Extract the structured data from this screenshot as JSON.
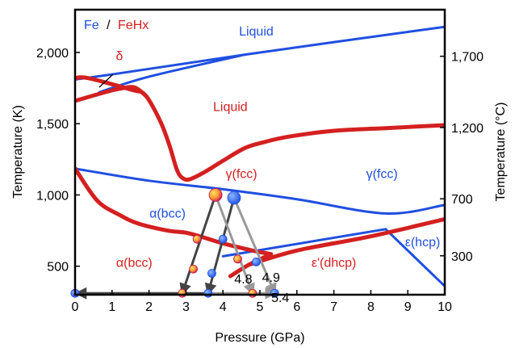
{
  "chart_data": {
    "type": "line",
    "title": "",
    "xlabel": "Pressure (GPa)",
    "ylabel": "Temperature (K)",
    "y2label": "Temperature (°C)",
    "xlim": [
      0,
      10
    ],
    "ylim": [
      300,
      2300
    ],
    "x_ticks": [
      0,
      1,
      2,
      3,
      4,
      5,
      6,
      7,
      8,
      9,
      10
    ],
    "y_ticks": [
      500,
      1000,
      1500,
      2000
    ],
    "y_tick_labels": [
      "500",
      "1,000",
      "1,500",
      "2,000"
    ],
    "y2_ticks": [
      300,
      700,
      1200,
      1700
    ],
    "y2_tick_labels": [
      "300",
      "700",
      "1,200",
      "1,700"
    ],
    "grid": false,
    "legend": {
      "position": "top-left",
      "items": [
        {
          "label": "Fe",
          "color": "#1f4fe0"
        },
        {
          "label": "/",
          "color": "#000000"
        },
        {
          "label": "FeHx",
          "color": "#d42020"
        }
      ]
    },
    "colors": {
      "fe": "#1f4fe0",
      "fehx": "#d42020",
      "path_dark": "#444444",
      "path_gray": "#999999",
      "axis": "#000000"
    },
    "series": [
      {
        "group": "Fe",
        "color": "#1f4fe0",
        "points": [
          [
            0.65,
            1720
          ],
          [
            2.0,
            1830
          ],
          [
            4.6,
            1985
          ]
        ]
      },
      {
        "group": "Fe",
        "color": "#1f4fe0",
        "points": [
          [
            0,
            1810
          ],
          [
            1.1,
            1850
          ],
          [
            4.6,
            1985
          ],
          [
            10,
            2180
          ]
        ]
      },
      {
        "group": "Fe",
        "color": "#1f4fe0",
        "points": [
          [
            0,
            1185
          ],
          [
            2.0,
            1100
          ],
          [
            4.0,
            1040
          ],
          [
            6.0,
            970
          ],
          [
            8.4,
            870
          ],
          [
            10,
            930
          ]
        ]
      },
      {
        "group": "Fe",
        "color": "#1f4fe0",
        "points": [
          [
            4.0,
            570
          ],
          [
            8.4,
            760
          ]
        ]
      },
      {
        "group": "Fe",
        "color": "#1f4fe0",
        "points": [
          [
            8.4,
            760
          ],
          [
            10,
            360
          ]
        ]
      },
      {
        "group": "FeHx",
        "color": "#d42020",
        "points": [
          [
            0,
            1820
          ],
          [
            0.35,
            1820
          ],
          [
            1.5,
            1740
          ],
          [
            1.9,
            1700
          ],
          [
            2.3,
            1520
          ],
          [
            2.55,
            1350
          ],
          [
            2.75,
            1180
          ],
          [
            2.9,
            1120
          ],
          [
            3.1,
            1110
          ],
          [
            3.5,
            1160
          ],
          [
            4.0,
            1240
          ],
          [
            4.6,
            1330
          ],
          [
            5.1,
            1370
          ],
          [
            5.8,
            1410
          ],
          [
            7.0,
            1450
          ],
          [
            8.5,
            1470
          ],
          [
            10,
            1490
          ]
        ]
      },
      {
        "group": "FeHx",
        "color": "#d42020",
        "points": [
          [
            0,
            1660
          ],
          [
            0.8,
            1720
          ],
          [
            1.2,
            1745
          ],
          [
            1.6,
            1755
          ],
          [
            1.9,
            1700
          ]
        ]
      },
      {
        "group": "FeHx",
        "color": "#d42020",
        "points": [
          [
            0,
            1185
          ],
          [
            0.6,
            960
          ],
          [
            1.2,
            860
          ],
          [
            1.7,
            800
          ],
          [
            2.5,
            750
          ],
          [
            3.0,
            735
          ],
          [
            3.5,
            700
          ],
          [
            4.0,
            660
          ],
          [
            4.8,
            610
          ],
          [
            5.3,
            585
          ]
        ]
      },
      {
        "group": "FeHx",
        "color": "#d42020",
        "points": [
          [
            5.3,
            585
          ],
          [
            4.7,
            510
          ],
          [
            4.2,
            430
          ]
        ]
      },
      {
        "group": "FeHx",
        "color": "#d42020",
        "points": [
          [
            4.7,
            510
          ],
          [
            6.0,
            610
          ],
          [
            8.0,
            710
          ],
          [
            10,
            830
          ]
        ]
      }
    ],
    "annotations": [
      {
        "text": "Liquid",
        "x": 4.9,
        "y": 2120,
        "color": "#1f4fe0"
      },
      {
        "text": "δ",
        "x": 1.2,
        "y": 1945,
        "color": "#d42020"
      },
      {
        "text": "Liquid",
        "x": 4.2,
        "y": 1590,
        "color": "#d42020"
      },
      {
        "text": "γ(fcc)",
        "x": 4.5,
        "y": 1120,
        "color": "#d42020"
      },
      {
        "text": "γ(fcc)",
        "x": 8.3,
        "y": 1120,
        "color": "#1f4fe0"
      },
      {
        "text": "α(bcc)",
        "x": 2.5,
        "y": 840,
        "color": "#1f4fe0"
      },
      {
        "text": "α(bcc)",
        "x": 1.6,
        "y": 495,
        "color": "#d42020"
      },
      {
        "text": "ε'(dhcp)",
        "x": 7.0,
        "y": 495,
        "color": "#d42020"
      },
      {
        "text": "ε(hcp)",
        "x": 9.4,
        "y": 640,
        "color": "#1f4fe0"
      },
      {
        "text": "4.8",
        "x": 4.55,
        "y": 380,
        "color": "#000000"
      },
      {
        "text": "4.9",
        "x": 5.3,
        "y": 390,
        "color": "#000000"
      },
      {
        "text": "5.4",
        "x": 5.55,
        "y": 250,
        "color": "#000000"
      }
    ],
    "points": [
      {
        "x": 3.8,
        "y": 1000,
        "color": "#d42020",
        "size": "large"
      },
      {
        "x": 4.3,
        "y": 980,
        "color": "#1f4fe0",
        "size": "large"
      },
      {
        "x": 3.3,
        "y": 690,
        "color": "#d42020",
        "size": "small"
      },
      {
        "x": 3.2,
        "y": 480,
        "color": "#d42020",
        "size": "small"
      },
      {
        "x": 2.9,
        "y": 310,
        "color": "#d42020",
        "size": "small"
      },
      {
        "x": 4.0,
        "y": 690,
        "color": "#1f4fe0",
        "size": "small"
      },
      {
        "x": 3.7,
        "y": 450,
        "color": "#1f4fe0",
        "size": "small"
      },
      {
        "x": 3.6,
        "y": 310,
        "color": "#1f4fe0",
        "size": "small"
      },
      {
        "x": 4.4,
        "y": 550,
        "color": "#d42020",
        "size": "small"
      },
      {
        "x": 4.8,
        "y": 310,
        "color": "#d42020",
        "size": "small"
      },
      {
        "x": 4.9,
        "y": 530,
        "color": "#1f4fe0",
        "size": "small"
      },
      {
        "x": 5.4,
        "y": 310,
        "color": "#1f4fe0",
        "size": "small"
      },
      {
        "x": 0,
        "y": 310,
        "color": "#d42020",
        "size": "small"
      },
      {
        "x": 0,
        "y": 310,
        "color": "#1f4fe0",
        "size": "small"
      }
    ],
    "arrows": [
      {
        "from": [
          3.8,
          1000
        ],
        "to": [
          2.9,
          310
        ],
        "color": "#444444"
      },
      {
        "from": [
          4.3,
          980
        ],
        "to": [
          3.6,
          310
        ],
        "color": "#444444"
      },
      {
        "from": [
          3.8,
          1000
        ],
        "to": [
          4.8,
          310
        ],
        "color": "#999999"
      },
      {
        "from": [
          4.3,
          980
        ],
        "to": [
          5.4,
          310
        ],
        "color": "#999999"
      },
      {
        "from": [
          3.6,
          310
        ],
        "to": [
          0.05,
          310
        ],
        "color": "#444444"
      },
      {
        "from": [
          3.6,
          310
        ],
        "to": [
          5.4,
          310
        ],
        "color": "#999999"
      }
    ]
  }
}
